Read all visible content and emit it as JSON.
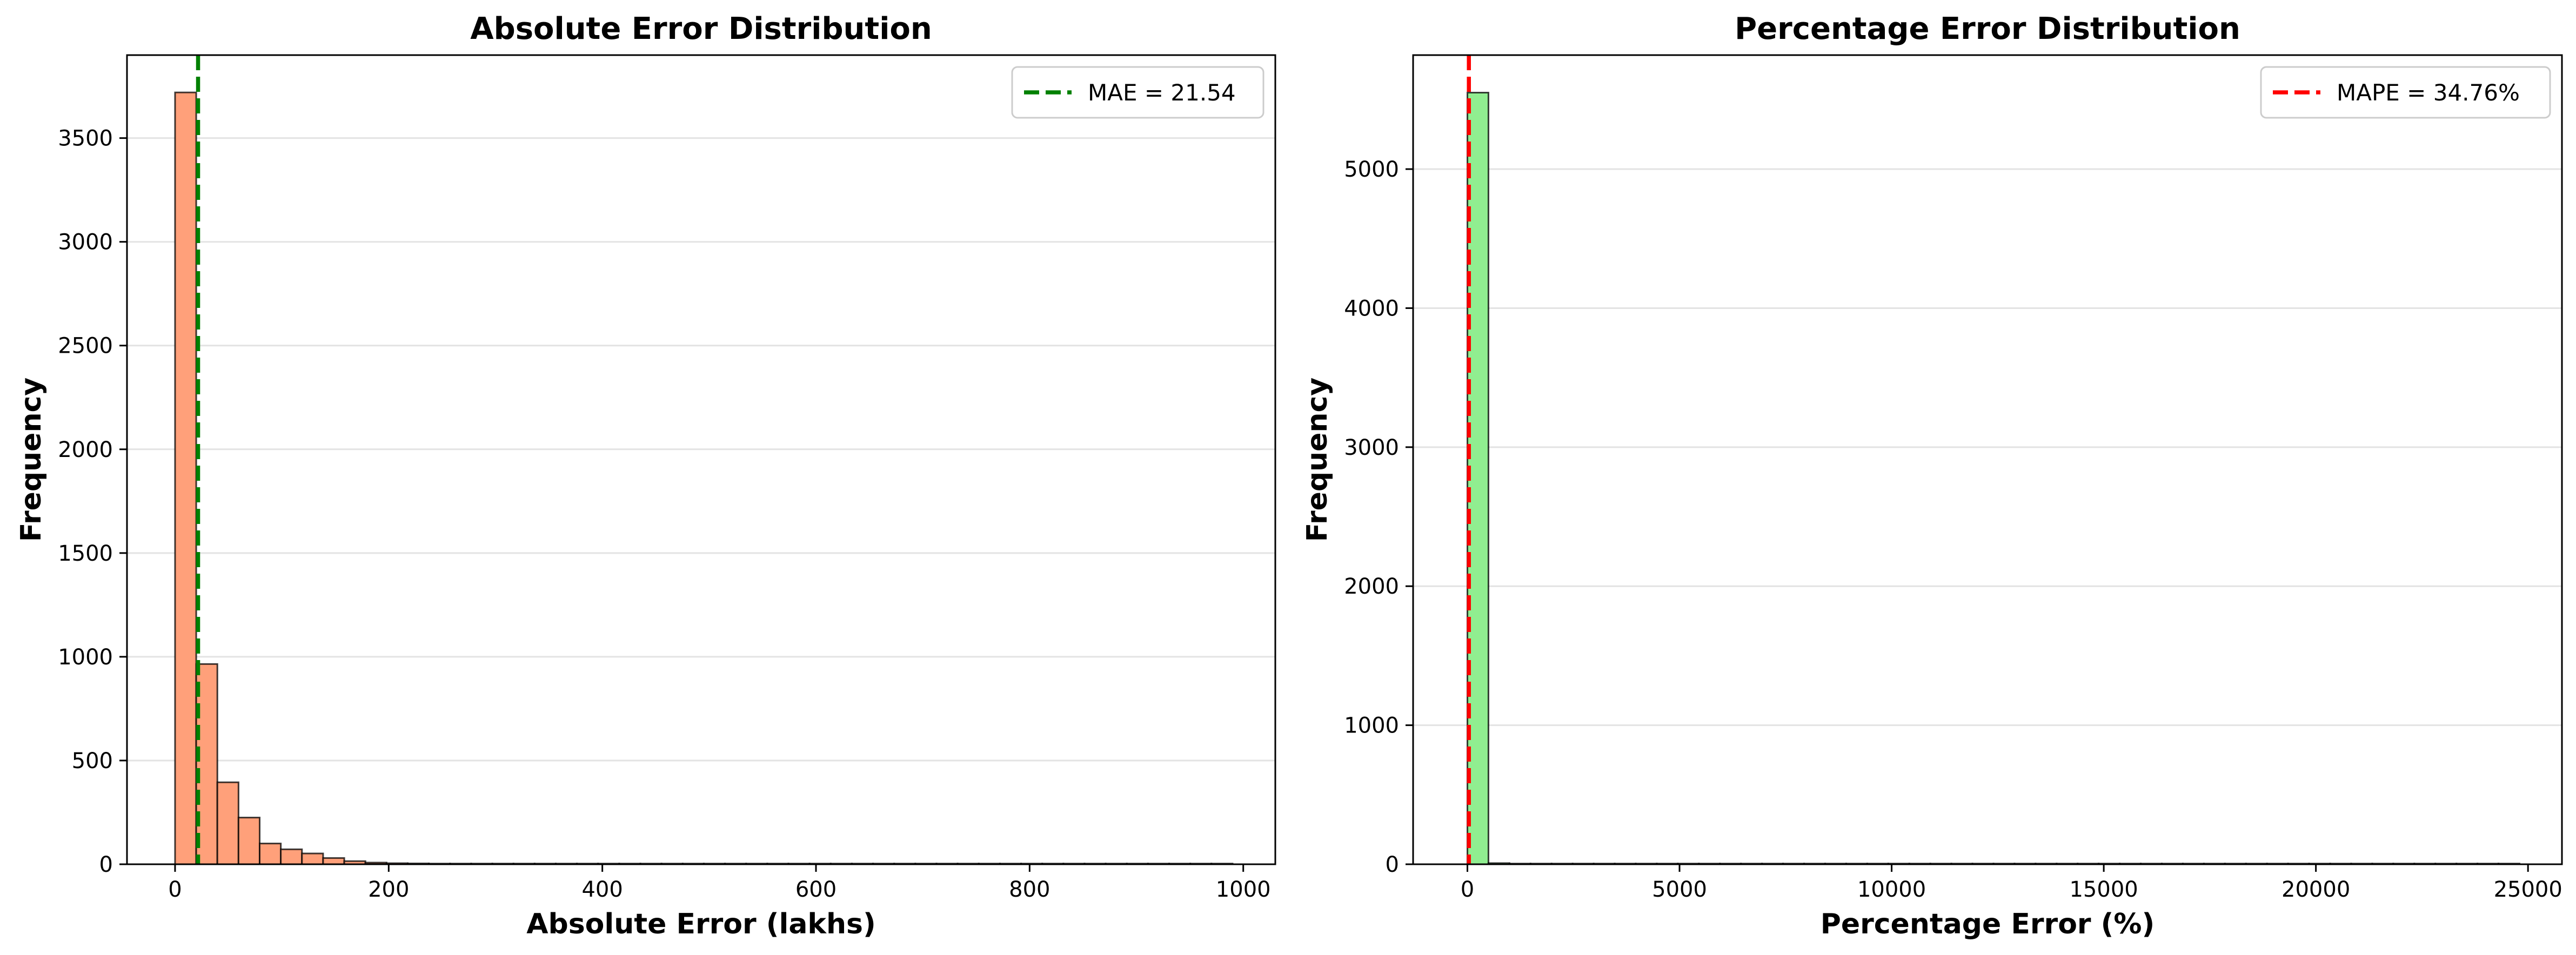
{
  "chart_data": [
    {
      "type": "bar",
      "title": "Absolute Error Distribution",
      "xlabel": "Absolute Error (lakhs)",
      "ylabel": "Frequency",
      "xlim": [
        -45,
        1030
      ],
      "ylim": [
        0,
        3900
      ],
      "xticks": [
        0,
        200,
        400,
        600,
        800,
        1000
      ],
      "yticks": [
        0,
        500,
        1000,
        1500,
        2000,
        2500,
        3000,
        3500
      ],
      "grid": "horizontal",
      "bar_color": "#FFA07A",
      "bin_width": 19.8,
      "bin_start": 0,
      "values": [
        3720,
        965,
        395,
        225,
        100,
        72,
        52,
        30,
        15,
        8,
        5,
        4,
        3,
        2,
        2,
        2,
        1,
        1,
        1,
        1,
        1,
        1,
        1,
        1,
        1,
        1,
        1,
        1,
        1,
        1,
        1,
        1,
        1,
        1,
        1,
        1,
        1,
        1,
        1,
        1,
        1,
        1,
        1,
        1,
        1,
        1,
        1,
        1,
        1,
        1
      ],
      "reference_line": {
        "x": 21.54,
        "label": "MAE = 21.54",
        "color": "#008000"
      },
      "legend": {
        "placement": "top-right",
        "entries": [
          "MAE = 21.54"
        ]
      }
    },
    {
      "type": "bar",
      "title": "Percentage Error Distribution",
      "xlabel": "Percentage Error (%)",
      "ylabel": "Frequency",
      "xlim": [
        -1280,
        25800
      ],
      "ylim": [
        0,
        5820
      ],
      "xticks": [
        0,
        5000,
        10000,
        15000,
        20000,
        25000
      ],
      "yticks": [
        0,
        1000,
        2000,
        3000,
        4000,
        5000
      ],
      "grid": "horizontal",
      "bar_color": "#90EE90",
      "bin_width": 496,
      "bin_start": 0,
      "values": [
        5550,
        8,
        3,
        2,
        1,
        1,
        1,
        1,
        1,
        1,
        1,
        1,
        1,
        1,
        1,
        1,
        1,
        1,
        1,
        1,
        1,
        1,
        1,
        1,
        1,
        1,
        1,
        1,
        1,
        1,
        1,
        1,
        1,
        1,
        1,
        1,
        1,
        1,
        1,
        1,
        1,
        1,
        1,
        1,
        1,
        1,
        1,
        1,
        1,
        1
      ],
      "reference_line": {
        "x": 34.76,
        "label": "MAPE = 34.76%",
        "color": "#FF0000"
      },
      "legend": {
        "placement": "top-right",
        "entries": [
          "MAPE = 34.76%"
        ]
      }
    }
  ]
}
